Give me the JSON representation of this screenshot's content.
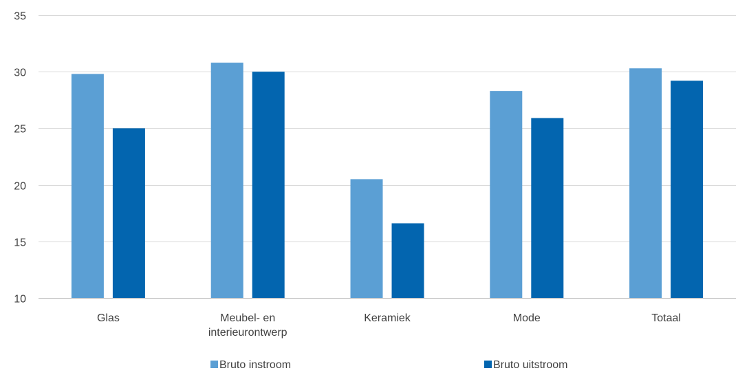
{
  "chart_data": {
    "type": "bar",
    "title": "",
    "xlabel": "",
    "ylabel": "",
    "ylim": [
      10,
      35
    ],
    "yticks": [
      10,
      15,
      20,
      25,
      30,
      35
    ],
    "grid": true,
    "legend_position": "bottom",
    "categories": [
      [
        "Glas"
      ],
      [
        "Meubel- en",
        "interieurontwerp"
      ],
      [
        "Keramiek"
      ],
      [
        "Mode"
      ],
      [
        "Totaal"
      ]
    ],
    "series": [
      {
        "name": "Bruto instroom",
        "color": "#5B9FD4",
        "values": [
          29.8,
          30.8,
          20.5,
          28.3,
          30.3
        ]
      },
      {
        "name": "Bruto uitstroom",
        "color": "#0365AF",
        "values": [
          25.0,
          30.0,
          16.6,
          25.9,
          29.2
        ]
      }
    ]
  }
}
